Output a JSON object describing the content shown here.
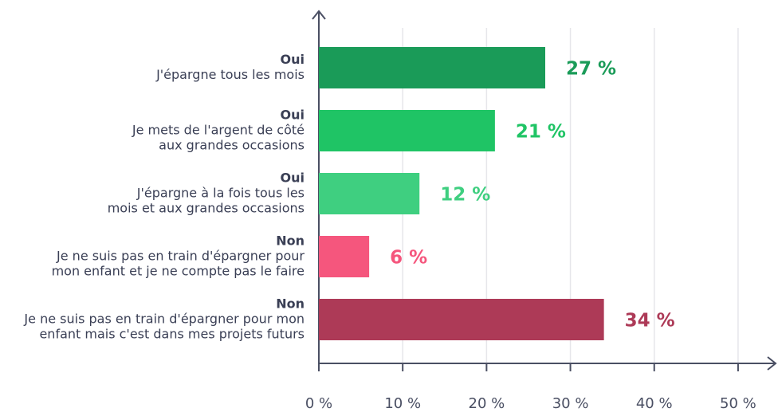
{
  "chart_data": {
    "type": "barh",
    "categories": [
      [
        "Oui",
        "J'épargne tous les mois"
      ],
      [
        "Oui",
        "Je mets de l'argent de côté",
        "aux grandes occasions"
      ],
      [
        "Oui",
        "J'épargne à la fois tous les",
        "mois et aux grandes occasions"
      ],
      [
        "Non",
        "Je ne suis pas en train d'épargner pour",
        "mon enfant et je ne compte pas le faire"
      ],
      [
        "Non",
        "Je ne suis pas en train d'épargner pour mon",
        "enfant mais c'est dans mes projets futurs"
      ]
    ],
    "values": [
      27,
      21,
      12,
      6,
      34
    ],
    "value_labels": [
      "27 %",
      "21 %",
      "12 %",
      "6 %",
      "34 %"
    ],
    "colors": [
      "#1a9b58",
      "#1fc465",
      "#3fcf80",
      "#f5567d",
      "#ad3a57"
    ],
    "xlim": [
      0,
      54
    ],
    "xticks": [
      {
        "value": 0,
        "label": "0 %"
      },
      {
        "value": 10,
        "label": "10 %"
      },
      {
        "value": 20,
        "label": "20 %"
      },
      {
        "value": 30,
        "label": "30 %"
      },
      {
        "value": 40,
        "label": "40 %"
      },
      {
        "value": 50,
        "label": "50 %"
      }
    ],
    "grid": true
  }
}
